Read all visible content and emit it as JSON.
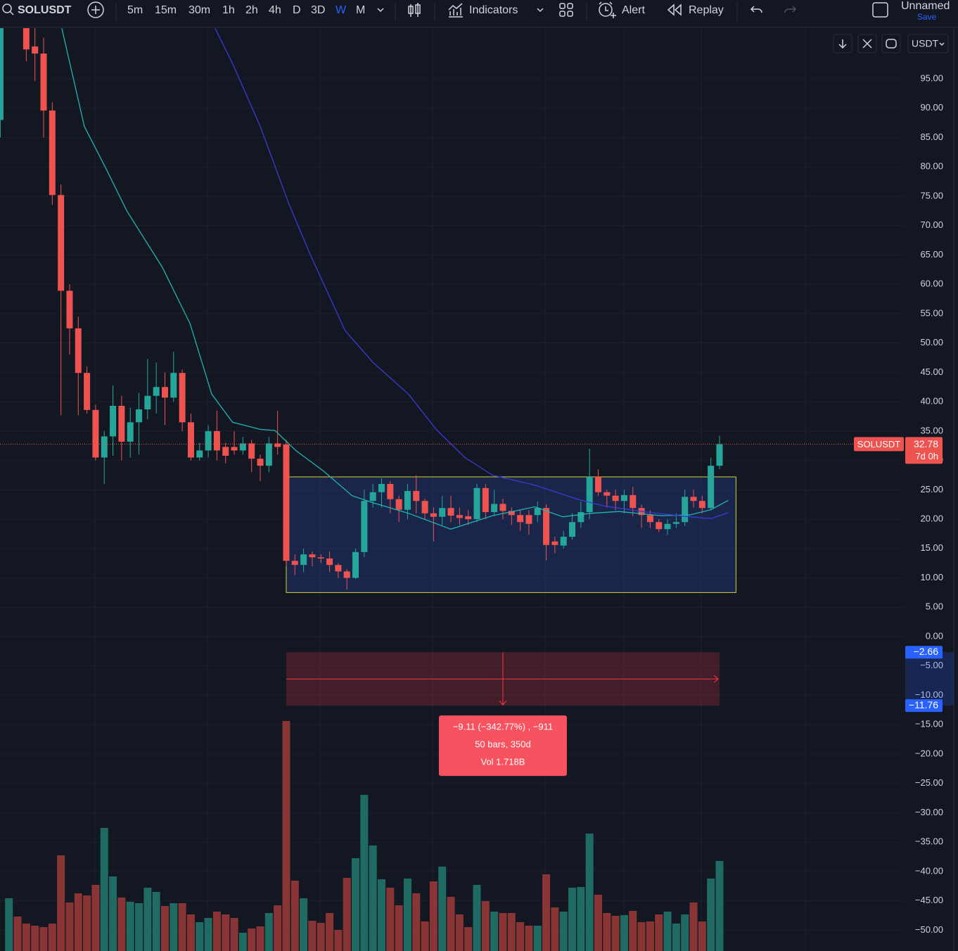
{
  "toolbar": {
    "symbol": "SOLUSDT",
    "intervals": [
      "5m",
      "15m",
      "30m",
      "1h",
      "2h",
      "4h",
      "D",
      "3D",
      "W",
      "M"
    ],
    "indicators": "Indicators",
    "alert": "Alert",
    "replay": "Replay",
    "layout_name": "Unnamed",
    "save": "Save"
  },
  "chart_data": {
    "type": "candlestick",
    "open": [
      88,
      108,
      118,
      106,
      100.5,
      99.3,
      89.6,
      75.2,
      58.9,
      52.5,
      44.9,
      38.6,
      30.5,
      34.1,
      39.3,
      33.2,
      36.5,
      38.7,
      41,
      42.5,
      40.7,
      44.9,
      36.5,
      30.5,
      31.7,
      35,
      32.3,
      32.3,
      31.7,
      32.9,
      30.3,
      29.1,
      32.9,
      32.7,
      12.9,
      12.2,
      14,
      13.5,
      13.3,
      12.2,
      11.1,
      10,
      14.4,
      23.1,
      24.6,
      26,
      23.4,
      21.6,
      24.8,
      23.1,
      21,
      20.4,
      21.9,
      20.7,
      20.5,
      20,
      25.3,
      21.2,
      22.6,
      21.4,
      20.7,
      20.7,
      20.7,
      21.9,
      16.2,
      15.5,
      17,
      19.5,
      21.2,
      27.2,
      24.6,
      24,
      23.1,
      24.1,
      21.9,
      20.7,
      19.5,
      18.3,
      19.2,
      19.5,
      23.8,
      23.1,
      21.9,
      29.1
    ],
    "high": [
      115,
      120,
      120,
      110,
      106,
      102,
      91,
      77,
      60,
      54.5,
      46,
      39.5,
      35,
      42.8,
      41,
      39,
      41.5,
      47.3,
      46.7,
      45,
      48.5,
      45.5,
      38,
      33,
      36,
      38.5,
      33,
      35,
      34,
      33.5,
      31,
      34,
      38.5,
      33.5,
      14,
      15,
      14.5,
      14,
      14.5,
      12.5,
      11.5,
      15,
      25,
      26,
      27,
      26.5,
      24,
      26,
      27.5,
      23.5,
      22,
      24,
      24,
      22,
      21.5,
      26,
      26,
      25,
      23.5,
      22,
      21.5,
      21.5,
      23,
      22.5,
      17,
      18,
      21,
      23,
      32,
      28.5,
      25,
      25,
      25,
      25.5,
      22.5,
      21.5,
      20,
      20,
      21,
      25,
      25,
      24,
      30.5,
      34.2
    ],
    "low": [
      85,
      106,
      104,
      98,
      94.6,
      85,
      73.5,
      37.7,
      48,
      37.7,
      38,
      30,
      26,
      30.8,
      30,
      30.5,
      31,
      37,
      38,
      36,
      40,
      35,
      30,
      30,
      30.5,
      30,
      29.5,
      31,
      31,
      28,
      26.5,
      28,
      31,
      12,
      10.5,
      11,
      12,
      12.5,
      11,
      10,
      8,
      9.8,
      13.5,
      22,
      22,
      21,
      19.5,
      20,
      21,
      20,
      16.2,
      19,
      19.5,
      19,
      19,
      19.5,
      20,
      20.5,
      20,
      19,
      18,
      17.3,
      19.5,
      13,
      14.2,
      15,
      16.5,
      18.5,
      20,
      24,
      22,
      21.5,
      21,
      20.5,
      18.5,
      18.5,
      17.8,
      17.3,
      18.5,
      18.8,
      22,
      21,
      21.5,
      28.5
    ],
    "close": [
      110,
      118,
      106,
      100,
      99.3,
      89.6,
      75.2,
      58.9,
      52.5,
      44.9,
      38.6,
      30.5,
      34.1,
      39.3,
      33.2,
      36.5,
      38.7,
      41,
      42.5,
      40.7,
      44.9,
      36.5,
      30.5,
      31.7,
      35,
      31.7,
      30.8,
      31.7,
      32.9,
      30.3,
      29.1,
      32.9,
      32.3,
      12.9,
      12.2,
      14,
      13.5,
      13.3,
      12.2,
      11.1,
      10,
      14.4,
      23.1,
      24.6,
      26,
      23.4,
      21.6,
      24.8,
      23.1,
      21,
      20.4,
      21.9,
      20.6,
      20.2,
      20,
      25.3,
      21.2,
      22.6,
      21.4,
      20.7,
      19.5,
      19.2,
      21.9,
      15.6,
      15.6,
      17,
      19.5,
      21.2,
      27.2,
      24.6,
      24,
      23.1,
      24.1,
      21.9,
      20.7,
      19.5,
      18.3,
      19.2,
      19.5,
      23.8,
      23.1,
      21.9,
      29.1,
      32.78
    ],
    "up_color": "#26a69a",
    "down_color": "#ef5350",
    "ylim": [
      -53.55,
      103.63
    ],
    "yticks": [
      {
        "value": 95,
        "label": "95.00"
      },
      {
        "value": 90,
        "label": "90.00"
      },
      {
        "value": 85,
        "label": "85.00"
      },
      {
        "value": 80,
        "label": "80.00"
      },
      {
        "value": 75,
        "label": "75.00"
      },
      {
        "value": 70,
        "label": "70.00"
      },
      {
        "value": 65,
        "label": "65.00"
      },
      {
        "value": 60,
        "label": "60.00"
      },
      {
        "value": 55,
        "label": "55.00"
      },
      {
        "value": 50,
        "label": "50.00"
      },
      {
        "value": 45,
        "label": "45.00"
      },
      {
        "value": 40,
        "label": "40.00"
      },
      {
        "value": 35,
        "label": "35.00"
      },
      {
        "value": 30,
        "label": "30.00"
      },
      {
        "value": 25,
        "label": "25.00"
      },
      {
        "value": 20,
        "label": "20.00"
      },
      {
        "value": 15,
        "label": "15.00"
      },
      {
        "value": 10,
        "label": "10.00"
      },
      {
        "value": 5,
        "label": "5.00"
      },
      {
        "value": 0,
        "label": "0.00"
      },
      {
        "value": -5,
        "label": "−5.00"
      },
      {
        "value": -10,
        "label": "−10.00"
      },
      {
        "value": -15,
        "label": "−15.00"
      },
      {
        "value": -20,
        "label": "−20.00"
      },
      {
        "value": -25,
        "label": "−25.00"
      },
      {
        "value": -30,
        "label": "−30.00"
      },
      {
        "value": -35,
        "label": "−35.00"
      },
      {
        "value": -40,
        "label": "−40.00"
      },
      {
        "value": -45,
        "label": "−45.00"
      },
      {
        "value": -50,
        "label": "−50.00"
      }
    ],
    "grid": true,
    "volume": {
      "up_color": "#1f6b63",
      "down_color": "#8a3535",
      "ylim": [
        0,
        330
      ],
      "values": [
        null,
        75,
        49,
        39,
        36,
        34,
        39,
        136,
        69,
        82,
        79,
        94,
        175,
        106,
        76,
        70,
        68,
        90,
        84,
        64,
        68,
        68,
        52,
        41,
        47,
        56,
        52,
        47,
        26,
        32,
        35,
        54,
        65,
        327,
        100,
        75,
        43,
        40,
        54,
        30,
        104,
        132,
        222,
        150,
        102,
        90,
        65,
        103,
        82,
        42,
        99,
        120,
        77,
        52,
        34,
        94,
        71,
        56,
        54,
        54,
        41,
        36,
        36,
        109,
        62,
        56,
        90,
        91,
        167,
        80,
        54,
        50,
        51,
        57,
        41,
        42,
        52,
        56,
        39,
        52,
        69,
        42,
        103,
        128
      ]
    },
    "moving_averages": [
      {
        "color": "#22b3b3",
        "x": [
          7.1,
          9.7,
          12.2,
          14.6,
          18.7,
          21.9,
          24.4,
          26.8,
          30,
          31.7,
          34.1,
          37.3,
          40.6,
          43,
          47.1,
          52,
          56.8,
          61.7,
          64.9,
          68.2,
          71.4,
          76.3,
          79.5,
          82,
          84
        ],
        "values": [
          103.6,
          86.9,
          79.7,
          72.5,
          62.9,
          53.3,
          41.3,
          36.5,
          35.3,
          35.1,
          31.7,
          28.2,
          24,
          22.8,
          21,
          18.3,
          20.6,
          22.1,
          20.4,
          21,
          21.3,
          20.6,
          20.7,
          21.6,
          23.2
        ]
      },
      {
        "color": "#3a3ad6",
        "x": [
          24.8,
          26.8,
          30,
          33.3,
          35.7,
          39.8,
          43,
          47.1,
          50.3,
          53.6,
          56.8,
          61.7,
          66.6,
          69.8,
          74.7,
          79.5,
          82,
          84
        ],
        "values": [
          103.6,
          97.6,
          86.9,
          73.7,
          65.3,
          52.1,
          46.7,
          41.3,
          35.3,
          30.5,
          27.5,
          25.8,
          23.4,
          22.2,
          21.2,
          20.4,
          20.1,
          21.1
        ]
      }
    ],
    "rectangle": {
      "start": 33,
      "end": 84.9,
      "top": 27.2,
      "bottom": 7.5
    },
    "measure": {
      "start": 33,
      "end": 83,
      "top": {
        "value": -2.66,
        "label": "−2.66"
      },
      "bottom": {
        "value": -11.76,
        "label": "−11.76"
      },
      "lines": [
        "−9.11 (−342.77%) , −911",
        "50 bars, 350d",
        "Vol 1.718B"
      ]
    },
    "last_price": {
      "symbol": "SOLUSDT",
      "countdown": "7d 0h"
    },
    "currency": "USDT"
  }
}
